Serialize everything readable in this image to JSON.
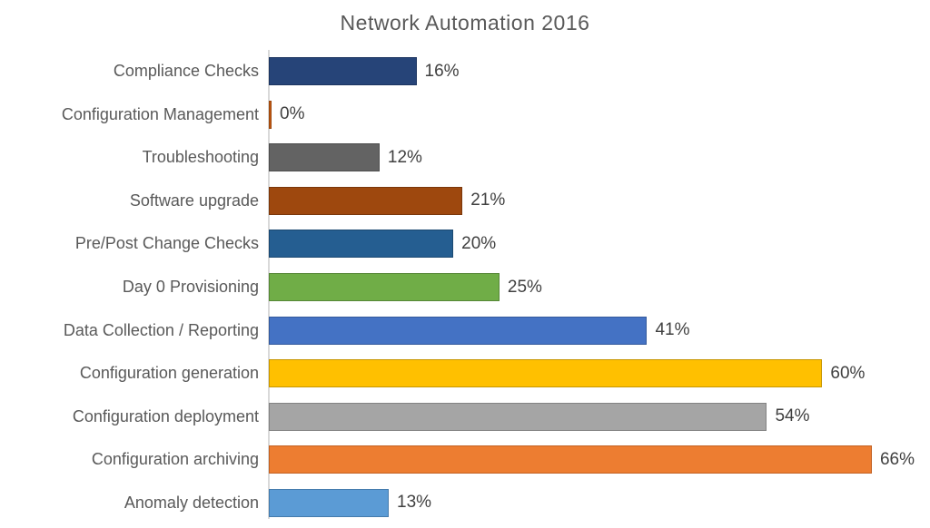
{
  "page": {
    "background_color": "#FFFFFF"
  },
  "chart_data": {
    "type": "bar",
    "orientation": "horizontal",
    "title": "Network Automation 2016",
    "categories": [
      "Compliance Checks",
      "Configuration Management",
      "Troubleshooting",
      "Software upgrade",
      "Pre/Post Change Checks",
      "Day 0 Provisioning",
      "Data Collection / Reporting",
      "Configuration generation",
      "Configuration deployment",
      "Configuration archiving",
      "Anomaly detection"
    ],
    "values": [
      16,
      0,
      12,
      21,
      20,
      25,
      41,
      60,
      54,
      66,
      13
    ],
    "data_labels": [
      "16%",
      "0%",
      "12%",
      "21%",
      "20%",
      "25%",
      "41%",
      "60%",
      "54%",
      "66%",
      "13%"
    ],
    "bar_colors": [
      "#264478",
      "#C55A11",
      "#636363",
      "#9E480E",
      "#255E91",
      "#70AD47",
      "#4472C4",
      "#FFC000",
      "#A5A5A5",
      "#ED7D31",
      "#5B9BD5"
    ],
    "bar_border_colors": [
      "#1D3560",
      "#9A460D",
      "#4E4E4E",
      "#7A370B",
      "#1C4971",
      "#568736",
      "#345A9C",
      "#C79600",
      "#838383",
      "#C26123",
      "#457BAC"
    ],
    "xlim": [
      0,
      70
    ],
    "grid": false,
    "legend": false,
    "title_color": "#595959",
    "category_label_color": "#595959",
    "data_label_color": "#404040",
    "axis_line_color": "#D9D9D9"
  }
}
